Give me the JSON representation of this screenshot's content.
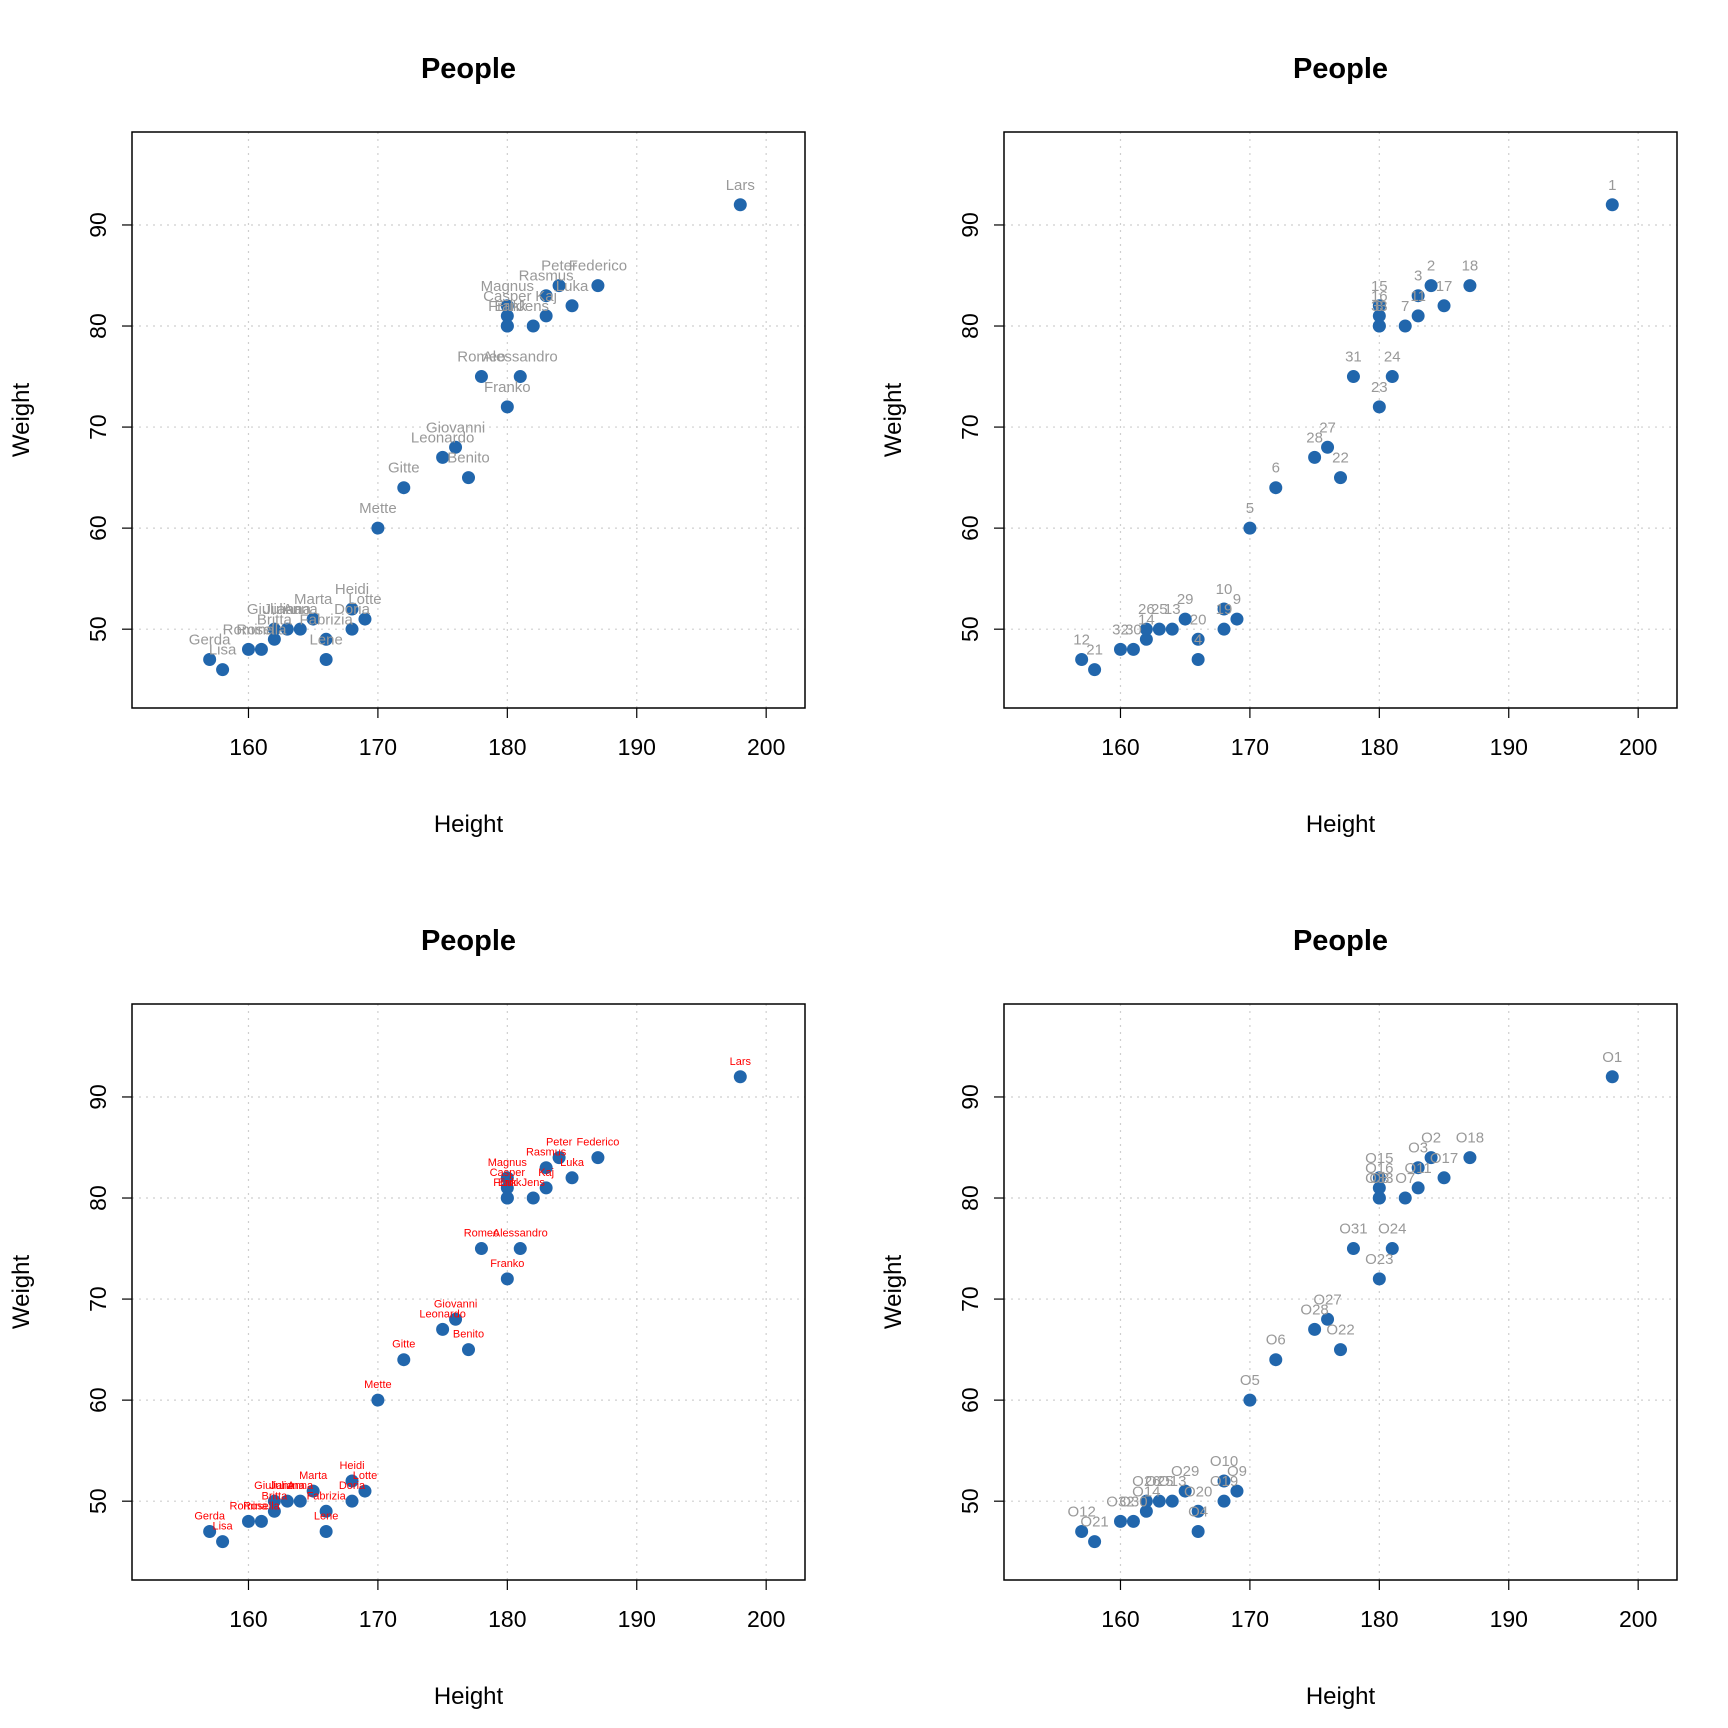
{
  "colors": {
    "point": "#2166ac",
    "grid": "#cfcfcf",
    "label_gray": "#999999",
    "label_red": "#ff0000"
  },
  "chart_data": [
    {
      "type": "scatter",
      "title": "People",
      "xlabel": "Height",
      "ylabel": "Weight",
      "xlim": [
        151,
        203
      ],
      "ylim": [
        42.2,
        99.2
      ],
      "xticks": [
        160,
        170,
        180,
        190,
        200
      ],
      "yticks": [
        50,
        60,
        70,
        80,
        90
      ],
      "grid": true,
      "label_color": "gray",
      "points": [
        {
          "label": "Lars",
          "x": 198,
          "y": 92
        },
        {
          "label": "Peter",
          "x": 184,
          "y": 84
        },
        {
          "label": "Rasmus",
          "x": 183,
          "y": 83
        },
        {
          "label": "Magnus",
          "x": 180,
          "y": 82
        },
        {
          "label": "Casper",
          "x": 180,
          "y": 81
        },
        {
          "label": "Heidi",
          "x": 168,
          "y": 52
        },
        {
          "label": "Mette",
          "x": 170,
          "y": 60
        },
        {
          "label": "Gitte",
          "x": 172,
          "y": 64
        },
        {
          "label": "Lotte",
          "x": 169,
          "y": 51
        },
        {
          "label": "Lene",
          "x": 166,
          "y": 47
        },
        {
          "label": "Frank",
          "x": 180,
          "y": 80
        },
        {
          "label": "Gerda",
          "x": 157,
          "y": 47
        },
        {
          "label": "Britta",
          "x": 162,
          "y": 49
        },
        {
          "label": "Lisa",
          "x": 158,
          "y": 46
        },
        {
          "label": "Federico",
          "x": 187,
          "y": 84
        },
        {
          "label": "Romina",
          "x": 160,
          "y": 48
        },
        {
          "label": "Luka",
          "x": 185,
          "y": 82
        },
        {
          "label": "Rosella",
          "x": 161,
          "y": 48
        },
        {
          "label": "Marta",
          "x": 165,
          "y": 51
        },
        {
          "label": "Alessandro",
          "x": 181,
          "y": 75
        },
        {
          "label": "Benito",
          "x": 177,
          "y": 65
        },
        {
          "label": "Franko",
          "x": 180,
          "y": 72
        },
        {
          "label": "Leonardo",
          "x": 175,
          "y": 67
        },
        {
          "label": "Giovanni",
          "x": 176,
          "y": 68
        },
        {
          "label": "Juliana",
          "x": 163,
          "y": 50
        },
        {
          "label": "Anna",
          "x": 164,
          "y": 50
        },
        {
          "label": "Doria",
          "x": 168,
          "y": 50
        },
        {
          "label": "Giuliana",
          "x": 162,
          "y": 50
        },
        {
          "label": "Fabrizia",
          "x": 166,
          "y": 49
        },
        {
          "label": "Romeo",
          "x": 178,
          "y": 75
        },
        {
          "label": "Jens",
          "x": 182,
          "y": 80
        },
        {
          "label": "Kaj",
          "x": 183,
          "y": 81
        },
        {
          "label": "Erik",
          "x": 180,
          "y": 80
        }
      ]
    },
    {
      "type": "scatter",
      "title": "People",
      "xlabel": "Height",
      "ylabel": "Weight",
      "xlim": [
        151,
        203
      ],
      "ylim": [
        42.2,
        99.2
      ],
      "xticks": [
        160,
        170,
        180,
        190,
        200
      ],
      "yticks": [
        50,
        60,
        70,
        80,
        90
      ],
      "grid": true,
      "label_color": "gray",
      "points": [
        {
          "label": "1",
          "x": 198,
          "y": 92
        },
        {
          "label": "2",
          "x": 184,
          "y": 84
        },
        {
          "label": "3",
          "x": 183,
          "y": 83
        },
        {
          "label": "15",
          "x": 180,
          "y": 82
        },
        {
          "label": "16",
          "x": 180,
          "y": 81
        },
        {
          "label": "10",
          "x": 168,
          "y": 52
        },
        {
          "label": "5",
          "x": 170,
          "y": 60
        },
        {
          "label": "6",
          "x": 172,
          "y": 64
        },
        {
          "label": "9",
          "x": 169,
          "y": 51
        },
        {
          "label": "4",
          "x": 166,
          "y": 47
        },
        {
          "label": "8",
          "x": 180,
          "y": 80
        },
        {
          "label": "12",
          "x": 157,
          "y": 47
        },
        {
          "label": "14",
          "x": 162,
          "y": 49
        },
        {
          "label": "21",
          "x": 158,
          "y": 46
        },
        {
          "label": "18",
          "x": 187,
          "y": 84
        },
        {
          "label": "32",
          "x": 160,
          "y": 48
        },
        {
          "label": "17",
          "x": 185,
          "y": 82
        },
        {
          "label": "30",
          "x": 161,
          "y": 48
        },
        {
          "label": "29",
          "x": 165,
          "y": 51
        },
        {
          "label": "24",
          "x": 181,
          "y": 75
        },
        {
          "label": "22",
          "x": 177,
          "y": 65
        },
        {
          "label": "23",
          "x": 180,
          "y": 72
        },
        {
          "label": "28",
          "x": 175,
          "y": 67
        },
        {
          "label": "27",
          "x": 176,
          "y": 68
        },
        {
          "label": "25",
          "x": 163,
          "y": 50
        },
        {
          "label": "13",
          "x": 164,
          "y": 50
        },
        {
          "label": "19",
          "x": 168,
          "y": 50
        },
        {
          "label": "26",
          "x": 162,
          "y": 50
        },
        {
          "label": "20",
          "x": 166,
          "y": 49
        },
        {
          "label": "31",
          "x": 178,
          "y": 75
        },
        {
          "label": "7",
          "x": 182,
          "y": 80
        },
        {
          "label": "11",
          "x": 183,
          "y": 81
        },
        {
          "label": "33",
          "x": 180,
          "y": 80
        }
      ]
    },
    {
      "type": "scatter",
      "title": "People",
      "xlabel": "Height",
      "ylabel": "Weight",
      "xlim": [
        151,
        203
      ],
      "ylim": [
        42.2,
        99.2
      ],
      "xticks": [
        160,
        170,
        180,
        190,
        200
      ],
      "yticks": [
        50,
        60,
        70,
        80,
        90
      ],
      "grid": true,
      "label_color": "red",
      "points": [
        {
          "label": "Lars",
          "x": 198,
          "y": 92
        },
        {
          "label": "Peter",
          "x": 184,
          "y": 84
        },
        {
          "label": "Rasmus",
          "x": 183,
          "y": 83
        },
        {
          "label": "Magnus",
          "x": 180,
          "y": 82
        },
        {
          "label": "Casper",
          "x": 180,
          "y": 81
        },
        {
          "label": "Heidi",
          "x": 168,
          "y": 52
        },
        {
          "label": "Mette",
          "x": 170,
          "y": 60
        },
        {
          "label": "Gitte",
          "x": 172,
          "y": 64
        },
        {
          "label": "Lotte",
          "x": 169,
          "y": 51
        },
        {
          "label": "Lene",
          "x": 166,
          "y": 47
        },
        {
          "label": "Frank",
          "x": 180,
          "y": 80
        },
        {
          "label": "Gerda",
          "x": 157,
          "y": 47
        },
        {
          "label": "Britta",
          "x": 162,
          "y": 49
        },
        {
          "label": "Lisa",
          "x": 158,
          "y": 46
        },
        {
          "label": "Federico",
          "x": 187,
          "y": 84
        },
        {
          "label": "Romina",
          "x": 160,
          "y": 48
        },
        {
          "label": "Luka",
          "x": 185,
          "y": 82
        },
        {
          "label": "Rosella",
          "x": 161,
          "y": 48
        },
        {
          "label": "Marta",
          "x": 165,
          "y": 51
        },
        {
          "label": "Alessandro",
          "x": 181,
          "y": 75
        },
        {
          "label": "Benito",
          "x": 177,
          "y": 65
        },
        {
          "label": "Franko",
          "x": 180,
          "y": 72
        },
        {
          "label": "Leonardo",
          "x": 175,
          "y": 67
        },
        {
          "label": "Giovanni",
          "x": 176,
          "y": 68
        },
        {
          "label": "Juliana",
          "x": 163,
          "y": 50
        },
        {
          "label": "Anna",
          "x": 164,
          "y": 50
        },
        {
          "label": "Doria",
          "x": 168,
          "y": 50
        },
        {
          "label": "Giuliana",
          "x": 162,
          "y": 50
        },
        {
          "label": "Fabrizia",
          "x": 166,
          "y": 49
        },
        {
          "label": "Romeo",
          "x": 178,
          "y": 75
        },
        {
          "label": "Jens",
          "x": 182,
          "y": 80
        },
        {
          "label": "Kaj",
          "x": 183,
          "y": 81
        },
        {
          "label": "Erik",
          "x": 180,
          "y": 80
        }
      ]
    },
    {
      "type": "scatter",
      "title": "People",
      "xlabel": "Height",
      "ylabel": "Weight",
      "xlim": [
        151,
        203
      ],
      "ylim": [
        42.2,
        99.2
      ],
      "xticks": [
        160,
        170,
        180,
        190,
        200
      ],
      "yticks": [
        50,
        60,
        70,
        80,
        90
      ],
      "grid": true,
      "label_color": "gray",
      "points": [
        {
          "label": "O1",
          "x": 198,
          "y": 92
        },
        {
          "label": "O2",
          "x": 184,
          "y": 84
        },
        {
          "label": "O3",
          "x": 183,
          "y": 83
        },
        {
          "label": "O15",
          "x": 180,
          "y": 82
        },
        {
          "label": "O16",
          "x": 180,
          "y": 81
        },
        {
          "label": "O10",
          "x": 168,
          "y": 52
        },
        {
          "label": "O5",
          "x": 170,
          "y": 60
        },
        {
          "label": "O6",
          "x": 172,
          "y": 64
        },
        {
          "label": "O9",
          "x": 169,
          "y": 51
        },
        {
          "label": "O4",
          "x": 166,
          "y": 47
        },
        {
          "label": "O8",
          "x": 180,
          "y": 80
        },
        {
          "label": "O12",
          "x": 157,
          "y": 47
        },
        {
          "label": "O14",
          "x": 162,
          "y": 49
        },
        {
          "label": "O21",
          "x": 158,
          "y": 46
        },
        {
          "label": "O18",
          "x": 187,
          "y": 84
        },
        {
          "label": "O32",
          "x": 160,
          "y": 48
        },
        {
          "label": "O17",
          "x": 185,
          "y": 82
        },
        {
          "label": "O30",
          "x": 161,
          "y": 48
        },
        {
          "label": "O29",
          "x": 165,
          "y": 51
        },
        {
          "label": "O24",
          "x": 181,
          "y": 75
        },
        {
          "label": "O22",
          "x": 177,
          "y": 65
        },
        {
          "label": "O23",
          "x": 180,
          "y": 72
        },
        {
          "label": "O28",
          "x": 175,
          "y": 67
        },
        {
          "label": "O27",
          "x": 176,
          "y": 68
        },
        {
          "label": "O25",
          "x": 163,
          "y": 50
        },
        {
          "label": "O13",
          "x": 164,
          "y": 50
        },
        {
          "label": "O19",
          "x": 168,
          "y": 50
        },
        {
          "label": "O26",
          "x": 162,
          "y": 50
        },
        {
          "label": "O20",
          "x": 166,
          "y": 49
        },
        {
          "label": "O31",
          "x": 178,
          "y": 75
        },
        {
          "label": "O7",
          "x": 182,
          "y": 80
        },
        {
          "label": "O11",
          "x": 183,
          "y": 81
        },
        {
          "label": "O33",
          "x": 180,
          "y": 80
        }
      ]
    }
  ]
}
